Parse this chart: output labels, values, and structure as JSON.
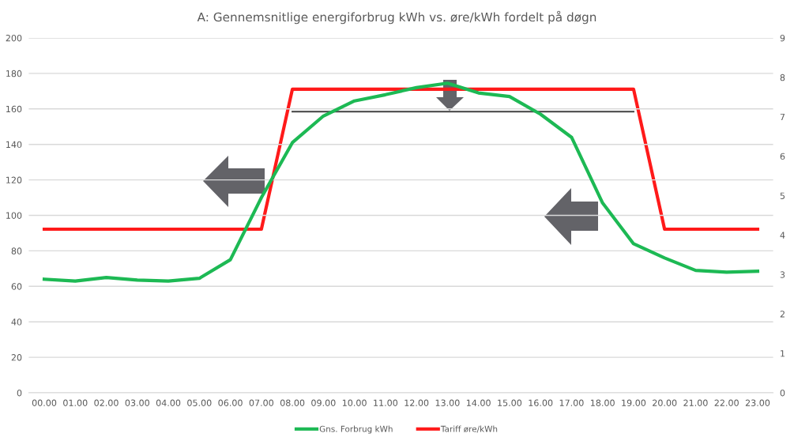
{
  "chart_data": {
    "type": "line",
    "title": "A: Gennemsnitlige energiforbrug kWh vs. øre/kWh fordelt på døgn",
    "categories": [
      "00.00",
      "01.00",
      "02.00",
      "03.00",
      "04.00",
      "05.00",
      "06.00",
      "07.00",
      "08.00",
      "09.00",
      "10.00",
      "11.00",
      "12.00",
      "13.00",
      "14.00",
      "15.00",
      "16.00",
      "17.00",
      "18.00",
      "19.00",
      "20.00",
      "21.00",
      "22.00",
      "23.00"
    ],
    "series": [
      {
        "name": "Gns. Forbrug kWh",
        "color": "#1db954",
        "values": [
          64,
          63,
          65,
          63.5,
          63,
          64.5,
          75,
          110,
          141,
          156,
          164.5,
          168,
          172,
          174.5,
          169,
          167,
          157,
          144,
          107,
          84,
          76,
          69,
          68,
          68.5
        ]
      },
      {
        "name": "Tariff øre/kWh",
        "color": "#ff1a1a",
        "axis": "y2",
        "values": [
          4.15,
          4.15,
          4.15,
          4.15,
          4.15,
          4.15,
          4.15,
          4.15,
          7.7,
          7.7,
          7.7,
          7.7,
          7.7,
          7.7,
          7.7,
          7.7,
          7.7,
          7.7,
          7.7,
          7.7,
          4.15,
          4.15,
          4.15,
          4.15
        ]
      },
      {
        "color": "#404040",
        "values": [
          null,
          null,
          null,
          null,
          null,
          null,
          null,
          null,
          158.5,
          158.5,
          158.5,
          158.5,
          158.5,
          158.5,
          158.5,
          158.5,
          158.5,
          158.5,
          158.5,
          158.5,
          null,
          null,
          null,
          null
        ]
      }
    ],
    "ylim": [
      0,
      200
    ],
    "yticks": [
      0,
      20,
      40,
      60,
      80,
      100,
      120,
      140,
      160,
      180,
      200
    ],
    "y2lim": [
      0,
      9
    ],
    "y2ticks": [
      0,
      1,
      2,
      3,
      4,
      5,
      6,
      7,
      8,
      9
    ],
    "grid": "y",
    "legend": "bottom",
    "marker": "none",
    "line_style": "solid"
  }
}
